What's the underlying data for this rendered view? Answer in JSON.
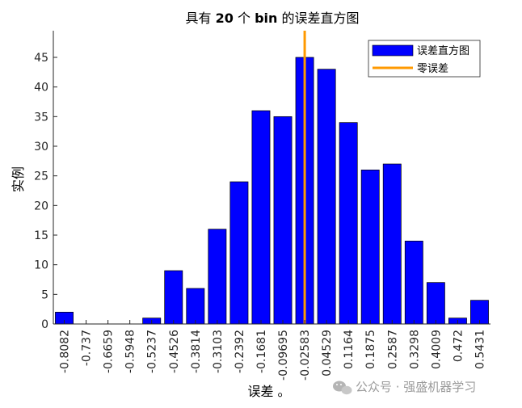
{
  "chart_data": {
    "type": "bar",
    "title": "具有 20 个 bin 的误差直方图",
    "title_parts": {
      "pre": "具有 ",
      "num": "20",
      "mid": " 个 ",
      "bold_word": "bin",
      "post": " 的误差直方图"
    },
    "xlabel": "误差 。",
    "ylabel": "实例",
    "categories": [
      "-0.8082",
      "-0.737",
      "-0.6659",
      "-0.5948",
      "-0.5237",
      "-0.4526",
      "-0.3814",
      "-0.3103",
      "-0.2392",
      "-0.1681",
      "-0.09695",
      "-0.02583",
      "0.04529",
      "0.1164",
      "0.1875",
      "0.2587",
      "0.3298",
      "0.4009",
      "0.472",
      "0.5431"
    ],
    "values": [
      2,
      0,
      0,
      0,
      1,
      9,
      6,
      16,
      24,
      36,
      35,
      45,
      43,
      34,
      26,
      27,
      14,
      7,
      1,
      4
    ],
    "ylim": [
      0,
      49.5
    ],
    "yticks": [
      0,
      5,
      10,
      15,
      20,
      25,
      30,
      35,
      40,
      45
    ],
    "zero_error_position": 11.5,
    "grid": false,
    "legend_position": "top-right",
    "series": [
      {
        "name": "误差直方图",
        "color": "#0000ff",
        "kind": "bar"
      },
      {
        "name": "零误差",
        "color": "#ff9900",
        "kind": "line"
      }
    ]
  },
  "watermark": {
    "text": "公众号 · 强盛机器学习",
    "icon": "wechat-icon"
  }
}
